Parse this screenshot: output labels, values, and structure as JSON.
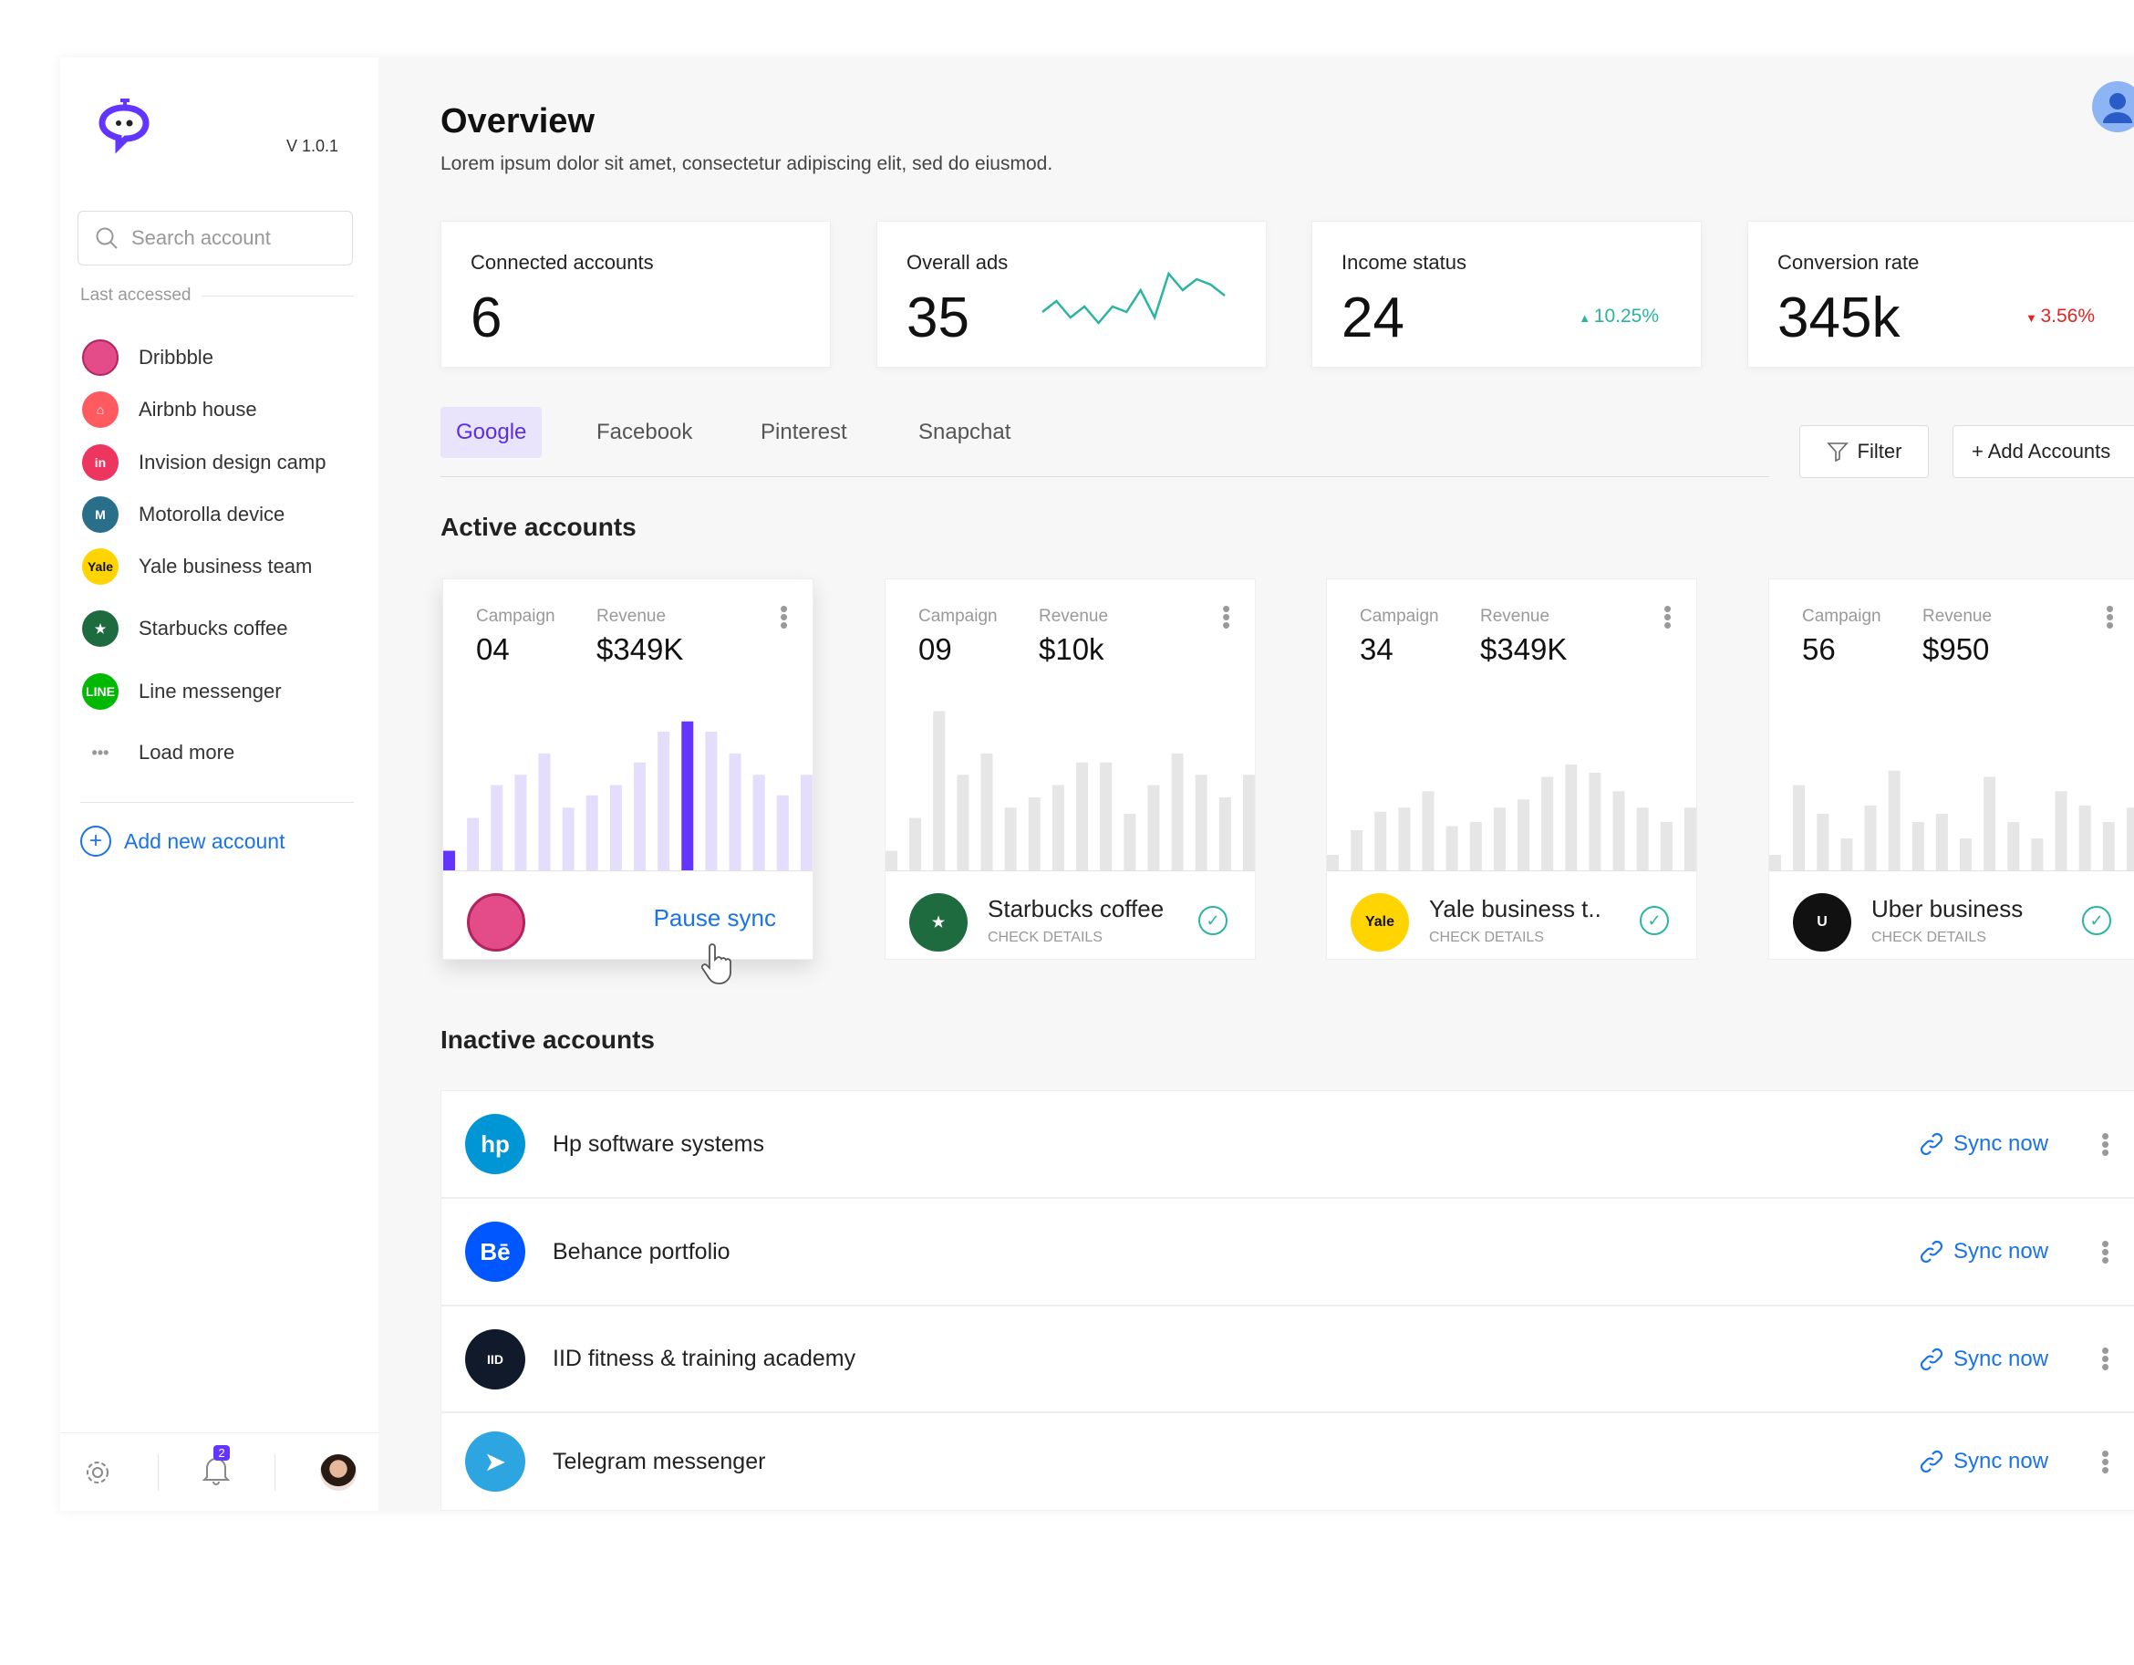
{
  "sidebar": {
    "version": "V 1.0.1",
    "search_placeholder": "Search account",
    "last_accessed_label": "Last accessed",
    "items": [
      {
        "label": "Dribbble",
        "icon": "dribbble-icon",
        "color": "#e44c89",
        "glyph": ""
      },
      {
        "label": "Airbnb house",
        "icon": "airbnb-icon",
        "color": "#ff5a5f",
        "glyph": "⌂"
      },
      {
        "label": "Invision design camp",
        "icon": "invision-icon",
        "color": "#ee3560",
        "glyph": "in"
      },
      {
        "label": "Motorolla device",
        "icon": "motorola-icon",
        "color": "#2a6f8a",
        "glyph": "M"
      },
      {
        "label": "Yale business team",
        "icon": "yale-icon",
        "color": "#ffd400",
        "glyph": "Yale"
      },
      {
        "label": "Starbucks coffee",
        "icon": "starbucks-icon",
        "color": "#1e6b3f",
        "glyph": "★"
      },
      {
        "label": "Line messenger",
        "icon": "line-icon",
        "color": "#00b900",
        "glyph": "LINE"
      }
    ],
    "load_more": "Load more",
    "add_new": "Add new account",
    "notification_count": "2"
  },
  "header": {
    "title": "Overview",
    "subtitle": "Lorem ipsum dolor sit amet, consectetur adipiscing elit, sed do eiusmod."
  },
  "stats": [
    {
      "label": "Connected accounts",
      "value": "6"
    },
    {
      "label": "Overall ads",
      "value": "35",
      "sparkline": [
        3,
        5,
        2,
        4,
        1,
        4,
        3,
        7,
        2,
        10,
        7,
        9,
        8,
        6
      ]
    },
    {
      "label": "Income status",
      "value": "24",
      "change": "10.25%",
      "direction": "up",
      "color": "#2bb5a0"
    },
    {
      "label": "Conversion rate",
      "value": "345k",
      "change": "3.56%",
      "direction": "down",
      "color": "#e02424"
    }
  ],
  "tabs": [
    {
      "label": "Google",
      "active": true
    },
    {
      "label": "Facebook"
    },
    {
      "label": "Pinterest"
    },
    {
      "label": "Snapchat"
    }
  ],
  "filter_label": "Filter",
  "add_accounts_label": "+ Add Accounts",
  "active_heading": "Active accounts",
  "campaign_label": "Campaign",
  "revenue_label": "Revenue",
  "check_details": "CHECK DETAILS",
  "accent": "#6236ff",
  "active_cards": [
    {
      "campaign": "04",
      "revenue": "$349K",
      "name": "",
      "action": "Pause sync",
      "logo_color": "#e44c89",
      "logo_text": "",
      "bars": [
        50,
        130,
        210,
        235,
        287,
        155,
        185,
        210,
        265,
        340,
        365,
        340,
        287,
        235,
        185,
        235
      ],
      "highlight": [
        0,
        10
      ]
    },
    {
      "campaign": "09",
      "revenue": "$10k",
      "name": "Starbucks coffee",
      "logo_color": "#1e6b3f",
      "logo_text": "★",
      "bars": [
        50,
        130,
        390,
        235,
        287,
        155,
        180,
        210,
        265,
        265,
        140,
        210,
        287,
        235,
        180,
        235
      ]
    },
    {
      "campaign": "34",
      "revenue": "$349K",
      "name": "Yale business t..",
      "logo_color": "#ffd400",
      "logo_text": "Yale",
      "bars": [
        40,
        100,
        145,
        155,
        195,
        110,
        120,
        155,
        175,
        230,
        260,
        240,
        195,
        155,
        120,
        155
      ]
    },
    {
      "campaign": "56",
      "revenue": "$950",
      "name": "Uber business",
      "logo_color": "#111111",
      "logo_text": "U",
      "bars": [
        40,
        210,
        140,
        80,
        160,
        245,
        120,
        140,
        80,
        230,
        120,
        80,
        195,
        160,
        120,
        155
      ]
    }
  ],
  "inactive_heading": "Inactive accounts",
  "sync_label": "Sync now",
  "inactive": [
    {
      "name": "Hp software systems",
      "logo_color": "#0096d6",
      "logo_text": "hp"
    },
    {
      "name": "Behance portfolio",
      "logo_color": "#0057ff",
      "logo_text": "Bē"
    },
    {
      "name": "IID fitness & training academy",
      "logo_color": "#111a2b",
      "logo_text": "IID"
    },
    {
      "name": "Telegram messenger",
      "logo_color": "#2ca5e0",
      "logo_text": "➤"
    }
  ]
}
